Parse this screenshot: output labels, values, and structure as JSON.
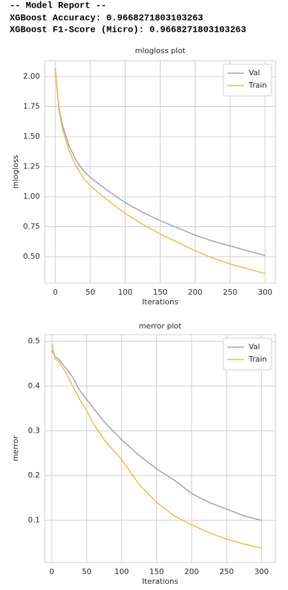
{
  "report": {
    "lines": [
      "-- Model Report --",
      "XGBoost Accuracy: 0.9668271803103263",
      "XGBoost F1-Score (Micro): 0.9668271803103263"
    ]
  },
  "chart_data": [
    {
      "type": "line",
      "title": "mlogloss plot",
      "x_label": "Iterations",
      "y_label": "mlogloss",
      "x": [
        0,
        5,
        10,
        20,
        30,
        40,
        50,
        75,
        100,
        125,
        150,
        175,
        200,
        225,
        250,
        275,
        300
      ],
      "series": [
        {
          "name": "Val",
          "color": "#8fa5ad",
          "values": [
            2.07,
            1.75,
            1.6,
            1.42,
            1.3,
            1.22,
            1.16,
            1.05,
            0.95,
            0.87,
            0.8,
            0.74,
            0.68,
            0.63,
            0.59,
            0.55,
            0.51
          ]
        },
        {
          "name": "Train",
          "color": "#f0b73a",
          "values": [
            2.06,
            1.73,
            1.57,
            1.38,
            1.25,
            1.16,
            1.09,
            0.97,
            0.86,
            0.77,
            0.69,
            0.62,
            0.55,
            0.49,
            0.44,
            0.4,
            0.36
          ]
        }
      ],
      "xlim": [
        -15,
        315
      ],
      "xticks": [
        0,
        50,
        100,
        150,
        200,
        250,
        300
      ],
      "ylim": [
        0.282,
        2.132
      ],
      "yticks": [
        {
          "value": 0.5,
          "label": "0.50"
        },
        {
          "value": 0.75,
          "label": "0.75"
        },
        {
          "value": 1.0,
          "label": "1.00"
        },
        {
          "value": 1.25,
          "label": "1.25"
        },
        {
          "value": 1.5,
          "label": "1.50"
        },
        {
          "value": 1.75,
          "label": "1.75"
        },
        {
          "value": 2.0,
          "label": "2.00"
        }
      ],
      "grid": true,
      "legend": "upper right"
    },
    {
      "type": "line",
      "title": "merror plot",
      "x_label": "Iterations",
      "y_label": "merror",
      "x": [
        0,
        5,
        10,
        20,
        30,
        40,
        50,
        60,
        75,
        100,
        125,
        150,
        175,
        200,
        225,
        250,
        275,
        300
      ],
      "series": [
        {
          "name": "Val",
          "color": "#8fa5ad",
          "values": [
            0.48,
            0.465,
            0.46,
            0.44,
            0.42,
            0.39,
            0.37,
            0.35,
            0.32,
            0.28,
            0.245,
            0.215,
            0.19,
            0.16,
            0.14,
            0.125,
            0.11,
            0.1
          ]
        },
        {
          "name": "Train",
          "color": "#f0b73a",
          "values": [
            0.495,
            0.46,
            0.455,
            0.43,
            0.4,
            0.37,
            0.345,
            0.315,
            0.28,
            0.235,
            0.18,
            0.14,
            0.11,
            0.09,
            0.072,
            0.058,
            0.047,
            0.038
          ]
        }
      ],
      "xlim": [
        -10,
        320
      ],
      "xticks": [
        0,
        50,
        100,
        150,
        200,
        250,
        300
      ],
      "ylim": [
        0.006,
        0.515
      ],
      "yticks": [
        0.1,
        0.2,
        0.3,
        0.4,
        0.5
      ],
      "grid": true,
      "legend": "upper right"
    }
  ]
}
